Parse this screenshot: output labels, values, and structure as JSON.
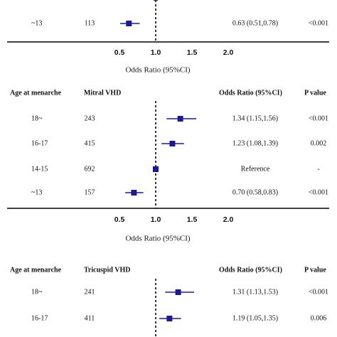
{
  "chart_data": [
    {
      "type": "forest",
      "header": null,
      "rows": [
        {
          "category": "",
          "n": "",
          "or_text": "",
          "p_text": "",
          "estimate": null,
          "lower": null,
          "upper": null,
          "partial": true
        },
        {
          "category": "~13",
          "n": "113",
          "or_text": "0.63 (0.51,0.78)",
          "p_text": "<0.001",
          "estimate": 0.63,
          "lower": 0.51,
          "upper": 0.78
        }
      ],
      "xticks": [
        "0.5",
        "1.0",
        "1.5",
        "2.0"
      ],
      "xlim": [
        0.5,
        2.0
      ],
      "reference_line": 1.0,
      "xlabel": "Odds Ratio (95%CI)"
    },
    {
      "type": "forest",
      "header": {
        "col1": "Age at menarche",
        "col2": "Mitral VHD",
        "col3": "Odds Ratio (95%CI)",
        "col4": "P value"
      },
      "rows": [
        {
          "category": "18~",
          "n": "243",
          "or_text": "1.34 (1.15,1.56)",
          "p_text": "<0.001",
          "estimate": 1.34,
          "lower": 1.15,
          "upper": 1.56
        },
        {
          "category": "16-17",
          "n": "415",
          "or_text": "1.23 (1.08,1.39)",
          "p_text": "0.002",
          "estimate": 1.23,
          "lower": 1.08,
          "upper": 1.39
        },
        {
          "category": "14-15",
          "n": "692",
          "or_text": "Reference",
          "p_text": "-",
          "estimate": 1.0,
          "lower": 1.0,
          "upper": 1.0
        },
        {
          "category": "~13",
          "n": "157",
          "or_text": "0.70 (0.58,0.83)",
          "p_text": "<0.001",
          "estimate": 0.7,
          "lower": 0.58,
          "upper": 0.83
        }
      ],
      "xticks": [
        "0.5",
        "1.0",
        "1.5",
        "2.0"
      ],
      "xlim": [
        0.5,
        2.0
      ],
      "reference_line": 1.0,
      "xlabel": "Odds Ratio (95%CI)"
    },
    {
      "type": "forest",
      "header": {
        "col1": "Age at menarche",
        "col2": "Tricuspid VHD",
        "col3": "Odds Ratio (95%CI)",
        "col4": "P value"
      },
      "rows": [
        {
          "category": "18~",
          "n": "241",
          "or_text": "1.31 (1.13,1.53)",
          "p_text": "<0.001",
          "estimate": 1.31,
          "lower": 1.13,
          "upper": 1.53
        },
        {
          "category": "16-17",
          "n": "411",
          "or_text": "1.19 (1.05,1.35)",
          "p_text": "0.006",
          "estimate": 1.19,
          "lower": 1.05,
          "upper": 1.35
        }
      ],
      "xticks": [],
      "xlim": [
        0.5,
        2.0
      ],
      "reference_line": 1.0,
      "xlabel": ""
    }
  ],
  "colors": {
    "marker": "#1a1a99",
    "text": "#111111",
    "axis": "#000000"
  }
}
